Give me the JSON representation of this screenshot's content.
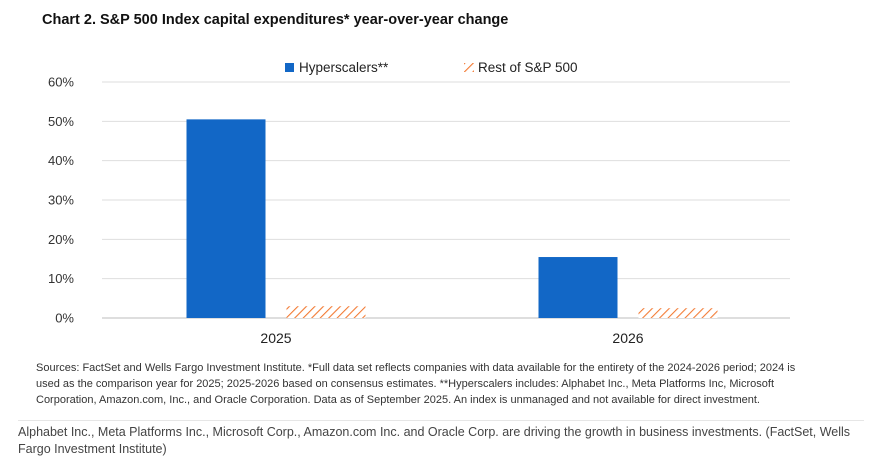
{
  "chart_data": {
    "type": "bar",
    "title": "Chart 2. S&P 500 Index capital expenditures* year-over-year change",
    "categories": [
      "2025",
      "2026"
    ],
    "series": [
      {
        "name": "Hyperscalers**",
        "values": [
          50.5,
          15.5
        ],
        "color": "#1267c6",
        "pattern": "solid"
      },
      {
        "name": "Rest of S&P 500",
        "values": [
          3,
          2.5
        ],
        "color": "#f37a33",
        "pattern": "hatched"
      }
    ],
    "ylim": [
      0,
      60
    ],
    "yticks": [
      "0%",
      "10%",
      "20%",
      "30%",
      "40%",
      "50%",
      "60%"
    ],
    "xlabel": "",
    "ylabel": "",
    "grid": true,
    "legend": "top-center"
  },
  "sources": "Sources: FactSet and Wells Fargo Investment Institute. *Full data set reflects companies with data available for the entirety of the 2024-2026 period; 2024 is used as the comparison year for 2025; 2025-2026 based on consensus estimates. **Hyperscalers includes: Alphabet Inc., Meta Platforms Inc, Microsoft Corporation, Amazon.com, Inc., and Oracle Corporation. Data as of September 2025. An index is unmanaged and not available for direct investment.",
  "caption": "Alphabet Inc., Meta Platforms Inc., Microsoft Corp., Amazon.com Inc. and Oracle Corp. are driving the growth in business investments. (FactSet, Wells Fargo Investment Institute)"
}
